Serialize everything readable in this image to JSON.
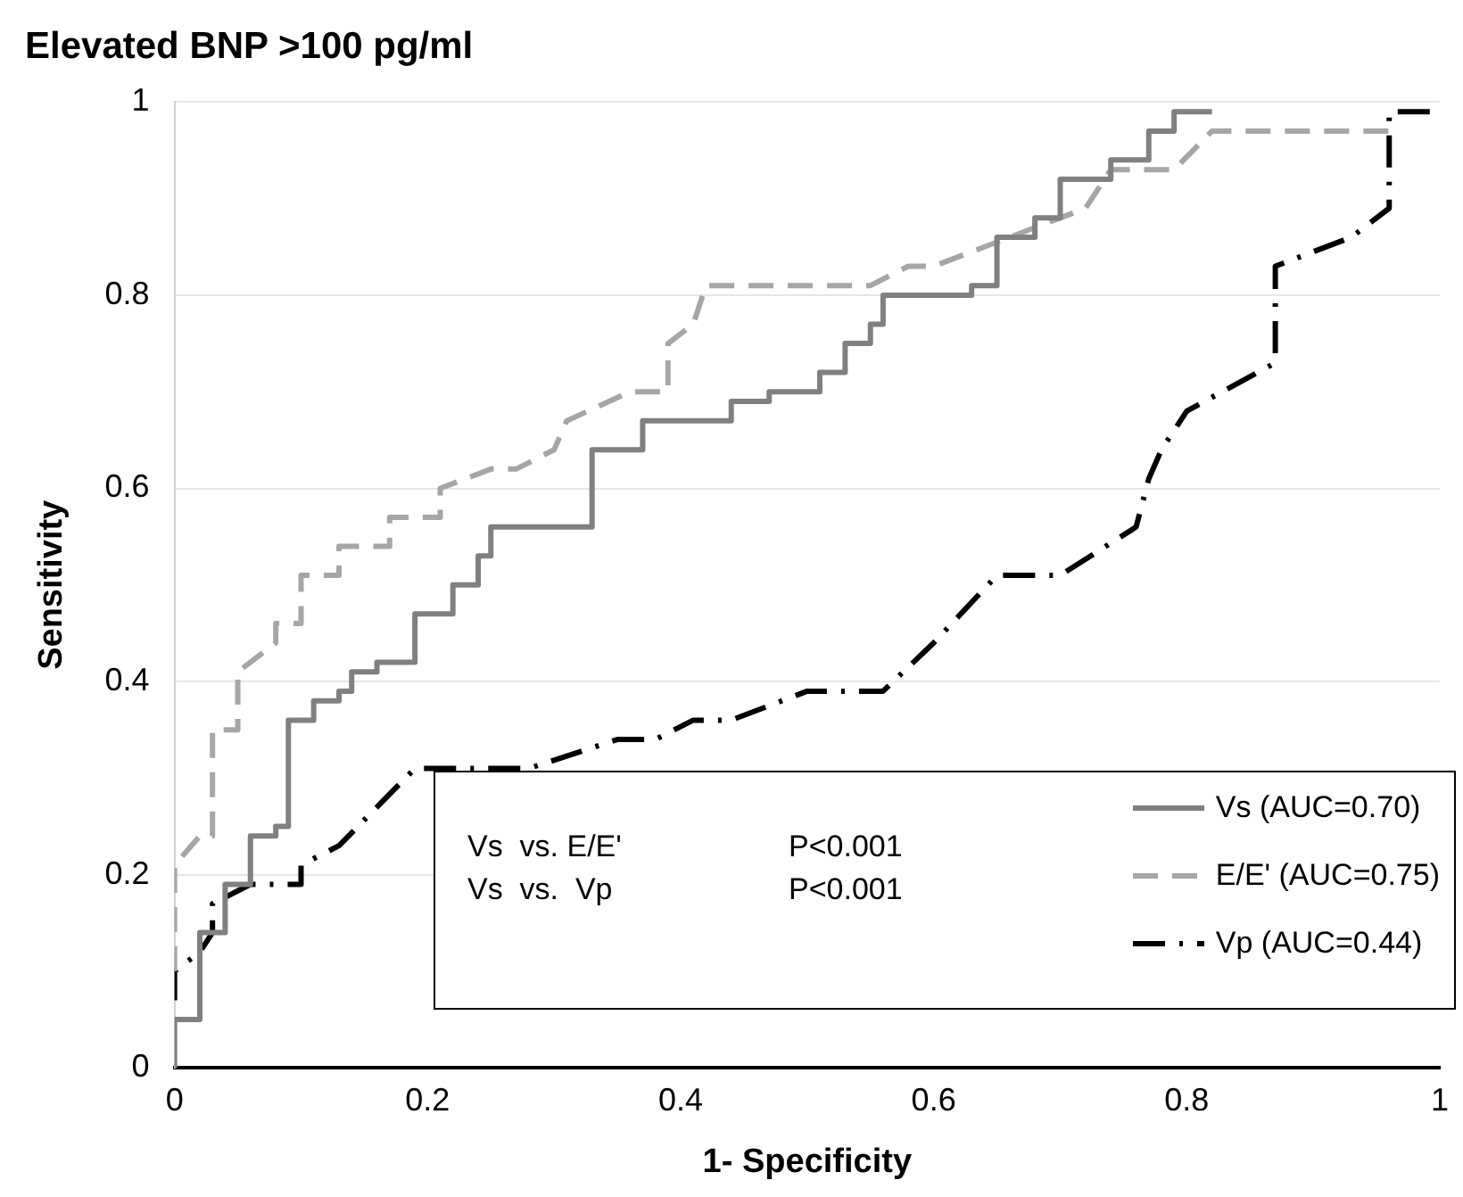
{
  "chart_data": {
    "type": "line",
    "title": "Elevated BNP >100 pg/ml",
    "xlabel": "1- Specificity",
    "ylabel": "Sensitivity",
    "xlim": [
      0,
      1
    ],
    "ylim": [
      0,
      1
    ],
    "xticks": [
      0,
      0.2,
      0.4,
      0.6,
      0.8,
      1
    ],
    "yticks": [
      0,
      0.2,
      0.4,
      0.6,
      0.8,
      1
    ],
    "grid": "y",
    "legend": "bottom right",
    "annotations": [
      "Vs  vs. E/E'",
      "P<0.001",
      "Vs  vs.  Vp",
      "P<0.001"
    ],
    "series": [
      {
        "name": "Vs (AUC=0.70)",
        "color": "#808080",
        "line_style": "solid",
        "x": [
          0,
          0,
          0.02,
          0.02,
          0.04,
          0.04,
          0.06,
          0.06,
          0.08,
          0.08,
          0.09,
          0.09,
          0.11,
          0.11,
          0.13,
          0.13,
          0.14,
          0.14,
          0.16,
          0.16,
          0.19,
          0.19,
          0.22,
          0.22,
          0.24,
          0.24,
          0.25,
          0.25,
          0.33,
          0.33,
          0.37,
          0.37,
          0.44,
          0.44,
          0.47,
          0.47,
          0.51,
          0.51,
          0.53,
          0.53,
          0.55,
          0.55,
          0.56,
          0.56,
          0.63,
          0.63,
          0.65,
          0.65,
          0.68,
          0.68,
          0.7,
          0.7,
          0.74,
          0.74,
          0.77,
          0.77,
          0.79,
          0.79,
          0.82
        ],
        "values": [
          0,
          0.05,
          0.05,
          0.14,
          0.14,
          0.19,
          0.19,
          0.24,
          0.24,
          0.25,
          0.25,
          0.36,
          0.36,
          0.38,
          0.38,
          0.39,
          0.39,
          0.41,
          0.41,
          0.42,
          0.42,
          0.47,
          0.47,
          0.5,
          0.5,
          0.53,
          0.53,
          0.56,
          0.56,
          0.64,
          0.64,
          0.67,
          0.67,
          0.69,
          0.69,
          0.7,
          0.7,
          0.72,
          0.72,
          0.75,
          0.75,
          0.77,
          0.77,
          0.8,
          0.8,
          0.81,
          0.81,
          0.86,
          0.86,
          0.88,
          0.88,
          0.92,
          0.92,
          0.94,
          0.94,
          0.97,
          0.97,
          0.99,
          0.99
        ]
      },
      {
        "name": "E/E' (AUC=0.75)",
        "color": "#a6a6a6",
        "line_style": "dashed",
        "x": [
          0,
          0,
          0.02,
          0.03,
          0.03,
          0.05,
          0.05,
          0.08,
          0.08,
          0.1,
          0.1,
          0.13,
          0.13,
          0.17,
          0.17,
          0.21,
          0.21,
          0.25,
          0.27,
          0.3,
          0.31,
          0.36,
          0.39,
          0.39,
          0.41,
          0.42,
          0.55,
          0.58,
          0.6,
          0.66,
          0.7,
          0.72,
          0.74,
          0.79,
          0.82,
          0.96
        ],
        "values": [
          0.1,
          0.21,
          0.24,
          0.24,
          0.35,
          0.35,
          0.41,
          0.44,
          0.46,
          0.46,
          0.51,
          0.51,
          0.54,
          0.54,
          0.57,
          0.57,
          0.6,
          0.62,
          0.62,
          0.64,
          0.67,
          0.7,
          0.7,
          0.75,
          0.77,
          0.81,
          0.81,
          0.83,
          0.83,
          0.86,
          0.88,
          0.89,
          0.93,
          0.93,
          0.97,
          0.97
        ]
      },
      {
        "name": "Vp (AUC=0.44)",
        "color": "#000000",
        "line_style": "dashdot",
        "x": [
          0,
          0,
          0.02,
          0.03,
          0.03,
          0.06,
          0.1,
          0.1,
          0.13,
          0.19,
          0.28,
          0.35,
          0.38,
          0.41,
          0.44,
          0.5,
          0.56,
          0.6,
          0.65,
          0.7,
          0.76,
          0.77,
          0.78,
          0.8,
          0.87,
          0.87,
          0.93,
          0.96,
          0.96,
          1
        ],
        "values": [
          0.07,
          0.1,
          0.12,
          0.14,
          0.17,
          0.19,
          0.19,
          0.21,
          0.23,
          0.31,
          0.31,
          0.34,
          0.34,
          0.36,
          0.36,
          0.39,
          0.39,
          0.44,
          0.51,
          0.51,
          0.56,
          0.61,
          0.64,
          0.68,
          0.73,
          0.83,
          0.86,
          0.89,
          0.99,
          0.99
        ]
      }
    ]
  }
}
